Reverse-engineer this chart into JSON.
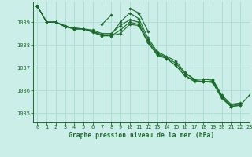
{
  "bg_color": "#cceee8",
  "grid_color": "#aaddcc",
  "line_color": "#1a6b2a",
  "title": "Graphe pression niveau de la mer (hPa)",
  "xlim": [
    -0.5,
    23
  ],
  "ylim": [
    1034.6,
    1039.9
  ],
  "yticks": [
    1035,
    1036,
    1037,
    1038,
    1039
  ],
  "xticks": [
    0,
    1,
    2,
    3,
    4,
    5,
    6,
    7,
    8,
    9,
    10,
    11,
    12,
    13,
    14,
    15,
    16,
    17,
    18,
    19,
    20,
    21,
    22,
    23
  ],
  "tick_fontsize": 5.0,
  "title_fontsize": 5.8,
  "series": [
    [
      1039.7,
      1039.0,
      1039.0,
      1038.8,
      1038.7,
      1038.7,
      1038.6,
      1038.45,
      1038.45,
      1039.0,
      1039.4,
      1039.15,
      1038.3,
      1037.7,
      1037.5,
      1037.3,
      1036.8,
      1036.5,
      1036.5,
      1036.5,
      1035.8,
      1035.4,
      1035.45,
      null
    ],
    [
      1039.7,
      1039.0,
      1039.0,
      1038.85,
      1038.7,
      1038.7,
      1038.65,
      1038.5,
      1038.5,
      1038.85,
      1039.1,
      1039.0,
      1038.2,
      1037.65,
      1037.45,
      1037.2,
      1036.75,
      1036.5,
      1036.5,
      1036.45,
      1035.75,
      1035.35,
      1035.4,
      null
    ],
    [
      1039.7,
      1039.0,
      1039.0,
      1038.8,
      1038.7,
      1038.7,
      1038.55,
      1038.4,
      1038.4,
      1038.5,
      1038.9,
      1038.85,
      1038.1,
      1037.55,
      1037.4,
      1037.1,
      1036.65,
      1036.45,
      1036.4,
      1036.4,
      1035.7,
      1035.3,
      1035.35,
      null
    ],
    [
      null,
      null,
      null,
      null,
      null,
      null,
      null,
      1038.9,
      1039.3,
      null,
      null,
      null,
      null,
      null,
      null,
      null,
      null,
      null,
      null,
      null,
      null,
      null,
      null,
      null
    ],
    [
      null,
      null,
      null,
      null,
      null,
      null,
      null,
      null,
      null,
      null,
      null,
      1039.4,
      1038.6,
      null,
      null,
      null,
      null,
      null,
      null,
      null,
      null,
      null,
      null,
      null
    ],
    [
      null,
      null,
      null,
      null,
      null,
      null,
      null,
      null,
      null,
      null,
      1039.6,
      1039.4,
      null,
      null,
      null,
      null,
      null,
      null,
      null,
      null,
      null,
      null,
      null,
      null
    ],
    [
      1039.7,
      1039.0,
      1039.0,
      1038.8,
      1038.75,
      1038.7,
      1038.6,
      1038.4,
      1038.4,
      1038.65,
      1039.0,
      1038.9,
      1038.1,
      1037.6,
      1037.4,
      1037.1,
      1036.65,
      1036.4,
      1036.4,
      1036.35,
      1035.65,
      1035.3,
      1035.35,
      1035.8
    ]
  ]
}
